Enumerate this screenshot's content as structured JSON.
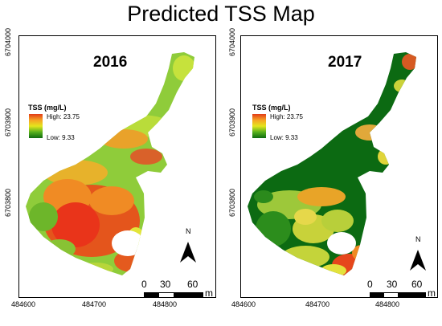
{
  "title": "Predicted TSS Map",
  "panels": [
    {
      "year": "2016",
      "legend": {
        "title": "TSS (mg/L)",
        "high": "High: 23.75",
        "low": "Low: 9.33"
      },
      "y_ticks": [
        "6704000",
        "6703900",
        "6703800"
      ],
      "x_ticks": [
        "484600",
        "484700",
        "484800"
      ],
      "north": "N",
      "scale": {
        "labels": [
          "0",
          "30",
          "60"
        ],
        "unit": "m"
      }
    },
    {
      "year": "2017",
      "legend": {
        "title": "TSS (mg/L)",
        "high": "High: 23.75",
        "low": "Low: 9.33"
      },
      "y_ticks": [
        "6704000",
        "6703900",
        "6703800"
      ],
      "x_ticks": [
        "484600",
        "484700",
        "484800"
      ],
      "north": "N",
      "scale": {
        "labels": [
          "0",
          "30",
          "60"
        ],
        "unit": "m"
      }
    }
  ],
  "colors": {
    "high": "#e23b17",
    "mid": "#e5e51d",
    "low": "#0e6b10"
  }
}
